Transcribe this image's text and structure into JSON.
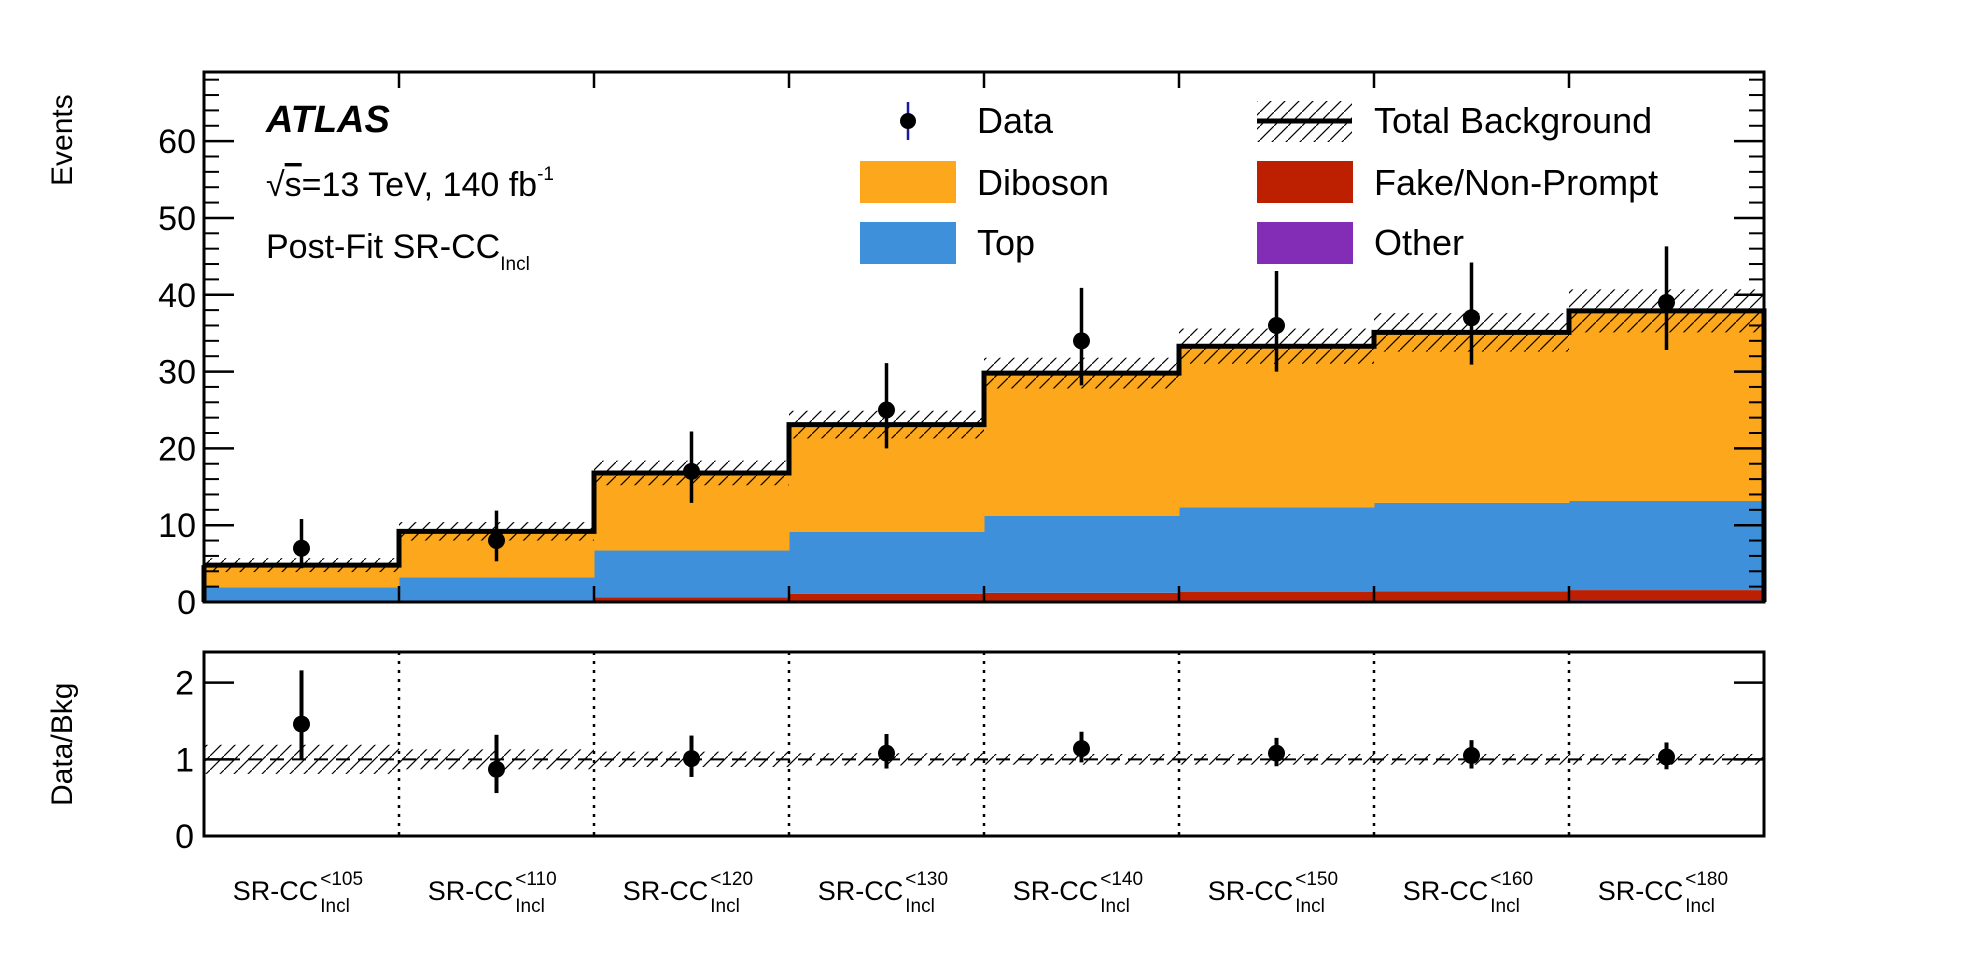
{
  "labels": {
    "experiment": "ATLAS",
    "energy_sqrt": "√",
    "energy_s": "s",
    "energy_rest": "=13 TeV, 140 fb",
    "energy_sup": "-1",
    "region_main": "Post-Fit SR-CC",
    "region_sub": "Incl"
  },
  "legend": [
    {
      "label": "Data",
      "style": "marker"
    },
    {
      "label": "Total Background",
      "style": "line-hatch"
    },
    {
      "label": "Diboson",
      "style": "box",
      "color": "#fca71c"
    },
    {
      "label": "Fake/Non-Prompt",
      "style": "box",
      "color": "#bd1f01"
    },
    {
      "label": "Top",
      "style": "box",
      "color": "#3f90da"
    },
    {
      "label": "Other",
      "style": "box",
      "color": "#832db6"
    }
  ],
  "colors": {
    "diboson": "#fca71c",
    "top": "#3f90da",
    "fake": "#bd1f01",
    "other": "#832db6",
    "line": "#000000"
  },
  "categories": [
    {
      "main": "SR-CC",
      "sup": "<105",
      "sub": "Incl"
    },
    {
      "main": "SR-CC",
      "sup": "<110",
      "sub": "Incl"
    },
    {
      "main": "SR-CC",
      "sup": "<120",
      "sub": "Incl"
    },
    {
      "main": "SR-CC",
      "sup": "<130",
      "sub": "Incl"
    },
    {
      "main": "SR-CC",
      "sup": "<140",
      "sub": "Incl"
    },
    {
      "main": "SR-CC",
      "sup": "<150",
      "sub": "Incl"
    },
    {
      "main": "SR-CC",
      "sup": "<160",
      "sub": "Incl"
    },
    {
      "main": "SR-CC",
      "sup": "<180",
      "sub": "Incl"
    }
  ],
  "chart_data": [
    {
      "type": "bar",
      "stacked": true,
      "ylabel": "Events",
      "ylim": [
        0,
        69
      ],
      "yticks": [
        0,
        10,
        20,
        30,
        40,
        50,
        60
      ],
      "series": [
        {
          "name": "Other",
          "color": "#832db6",
          "values": [
            0.05,
            0.05,
            0.1,
            0.15,
            0.2,
            0.2,
            0.2,
            0.25
          ]
        },
        {
          "name": "Fake/Non-Prompt",
          "color": "#bd1f01",
          "values": [
            0.05,
            0.05,
            0.5,
            0.9,
            1.0,
            1.1,
            1.2,
            1.3
          ]
        },
        {
          "name": "Top",
          "color": "#3f90da",
          "values": [
            1.8,
            3.1,
            6.1,
            8.1,
            10.0,
            11.0,
            11.5,
            11.6
          ]
        },
        {
          "name": "Diboson",
          "color": "#fca71c",
          "values": [
            2.9,
            6.0,
            10.1,
            14.0,
            18.6,
            21.0,
            22.2,
            24.8
          ]
        }
      ],
      "total_background": [
        4.8,
        9.2,
        16.8,
        23.1,
        29.8,
        33.3,
        35.1,
        37.9
      ],
      "total_uncertainty": [
        0.9,
        1.2,
        1.6,
        1.8,
        2.0,
        2.3,
        2.5,
        2.8
      ],
      "data": {
        "name": "Data",
        "values": [
          7,
          8,
          17,
          25,
          34,
          36,
          37,
          39
        ],
        "err_up": [
          3.8,
          3.9,
          5.2,
          6.1,
          6.9,
          7.1,
          7.2,
          7.3
        ],
        "err_down": [
          2.6,
          2.7,
          4.1,
          5.0,
          5.8,
          6.0,
          6.1,
          6.2
        ]
      }
    },
    {
      "type": "scatter",
      "ylabel": "Data/Bkg",
      "ylim": [
        0,
        2.4
      ],
      "yticks": [
        0,
        1,
        2
      ],
      "reference_line": 1,
      "band_halfwidth": [
        0.19,
        0.13,
        0.1,
        0.08,
        0.07,
        0.07,
        0.07,
        0.07
      ],
      "ratio": {
        "values": [
          1.46,
          0.87,
          1.01,
          1.08,
          1.14,
          1.08,
          1.05,
          1.03
        ],
        "err_up": [
          0.7,
          0.45,
          0.3,
          0.25,
          0.22,
          0.2,
          0.2,
          0.19
        ],
        "err_down": [
          0.45,
          0.31,
          0.24,
          0.2,
          0.18,
          0.17,
          0.17,
          0.16
        ]
      }
    }
  ]
}
